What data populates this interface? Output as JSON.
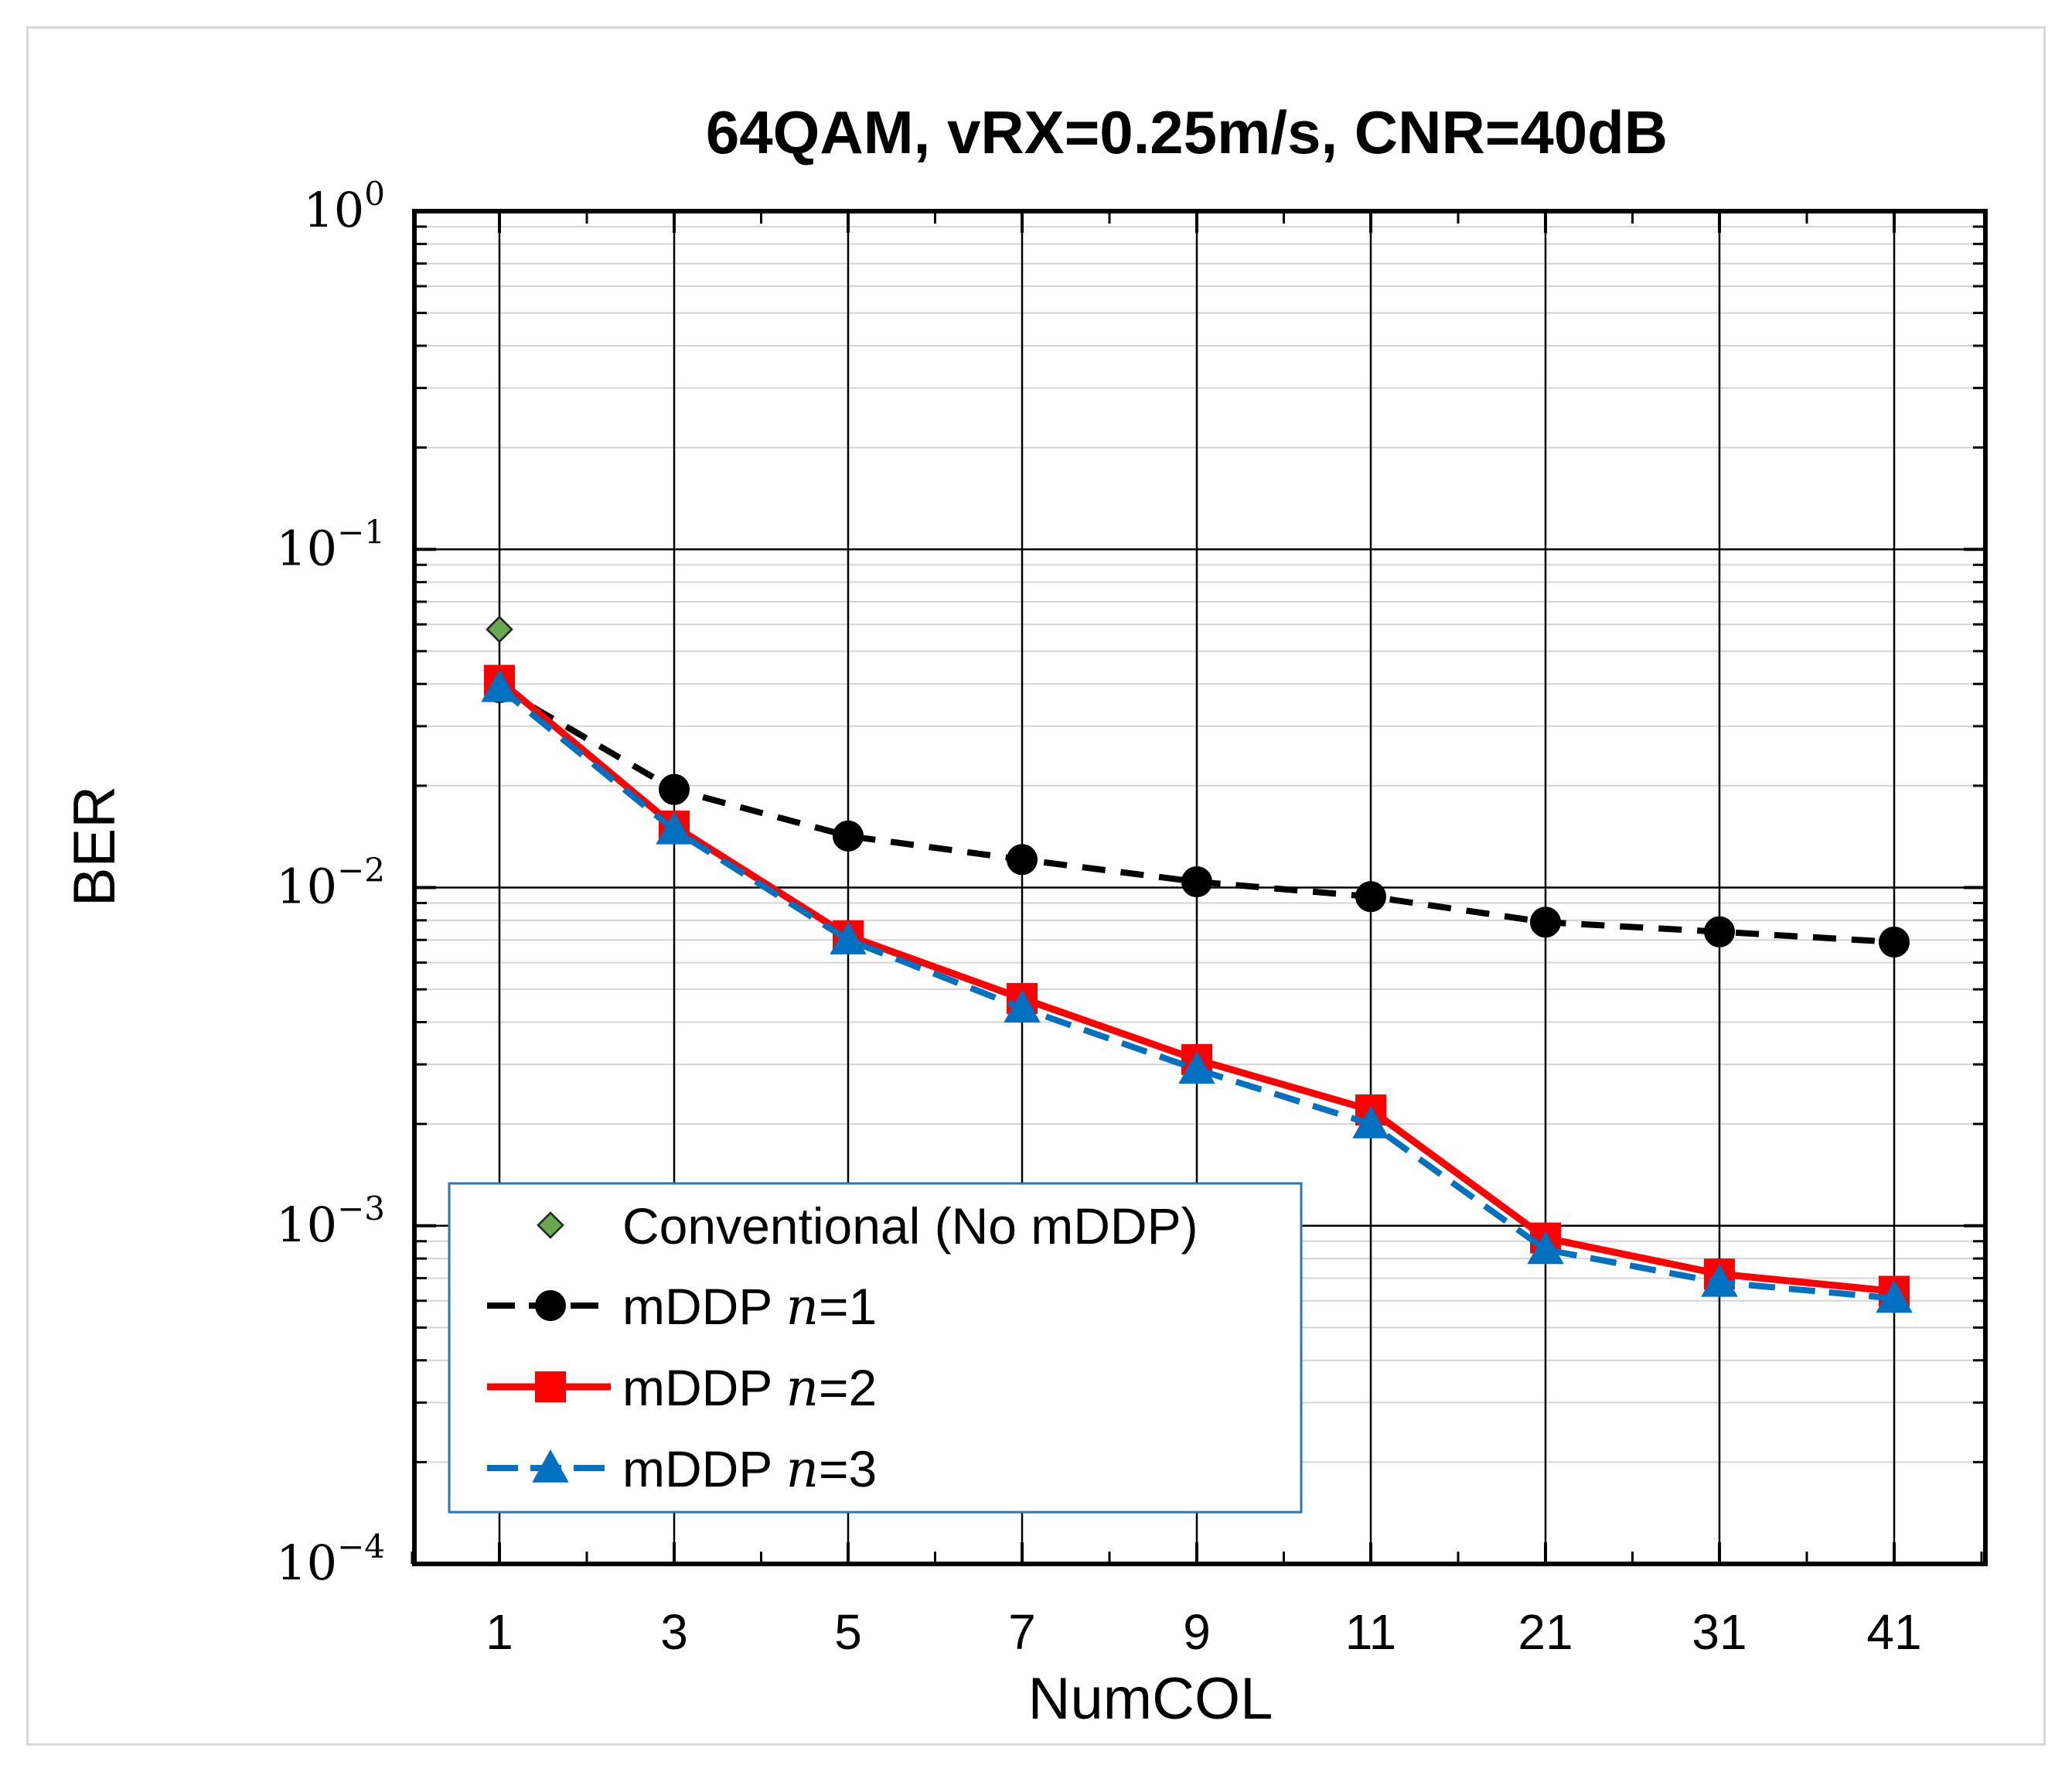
{
  "chart_data": {
    "type": "line",
    "title": "64QAM, vRX=0.25m/s, CNR=40dB",
    "xlabel": "NumCOL",
    "ylabel": "BER",
    "categories": [
      "1",
      "3",
      "5",
      "7",
      "9",
      "11",
      "21",
      "31",
      "41"
    ],
    "yscale": "log",
    "ylim": [
      0.0001,
      1
    ],
    "yticks": [
      {
        "value": 1,
        "base": "10",
        "exp": "0"
      },
      {
        "value": 0.1,
        "base": "10",
        "exp": "−1"
      },
      {
        "value": 0.01,
        "base": "10",
        "exp": "−2"
      },
      {
        "value": 0.001,
        "base": "10",
        "exp": "−3"
      },
      {
        "value": 0.0001,
        "base": "10",
        "exp": "−4"
      }
    ],
    "grid": true,
    "legend_position": "bottom-left",
    "series": [
      {
        "name": "Conventional (No mDDP)",
        "legend_prefix": "Conventional (No mDDP)",
        "legend_var": "",
        "legend_suffix": "",
        "color": "#6aa84f",
        "marker": "diamond",
        "line": "none",
        "values": [
          0.058,
          null,
          null,
          null,
          null,
          null,
          null,
          null,
          null
        ]
      },
      {
        "name": "mDDP n=1",
        "legend_prefix": "mDDP ",
        "legend_var": "n",
        "legend_suffix": "=1",
        "color": "#000000",
        "marker": "circle",
        "line": "dashed",
        "values": [
          0.039,
          0.0195,
          0.0142,
          0.0121,
          0.0104,
          0.0094,
          0.0079,
          0.0074,
          0.0069
        ]
      },
      {
        "name": "mDDP n=2",
        "legend_prefix": "mDDP ",
        "legend_var": "n",
        "legend_suffix": "=2",
        "color": "#ff0000",
        "marker": "square",
        "line": "solid",
        "values": [
          0.041,
          0.0152,
          0.0072,
          0.0047,
          0.0031,
          0.0022,
          0.00092,
          0.00072,
          0.00064
        ]
      },
      {
        "name": "mDDP n=3",
        "legend_prefix": "mDDP ",
        "legend_var": "n",
        "legend_suffix": "=3",
        "color": "#0070c0",
        "marker": "triangle",
        "line": "dashed",
        "values": [
          0.039,
          0.0148,
          0.007,
          0.0044,
          0.0029,
          0.002,
          0.00085,
          0.00068,
          0.00061
        ]
      }
    ]
  }
}
